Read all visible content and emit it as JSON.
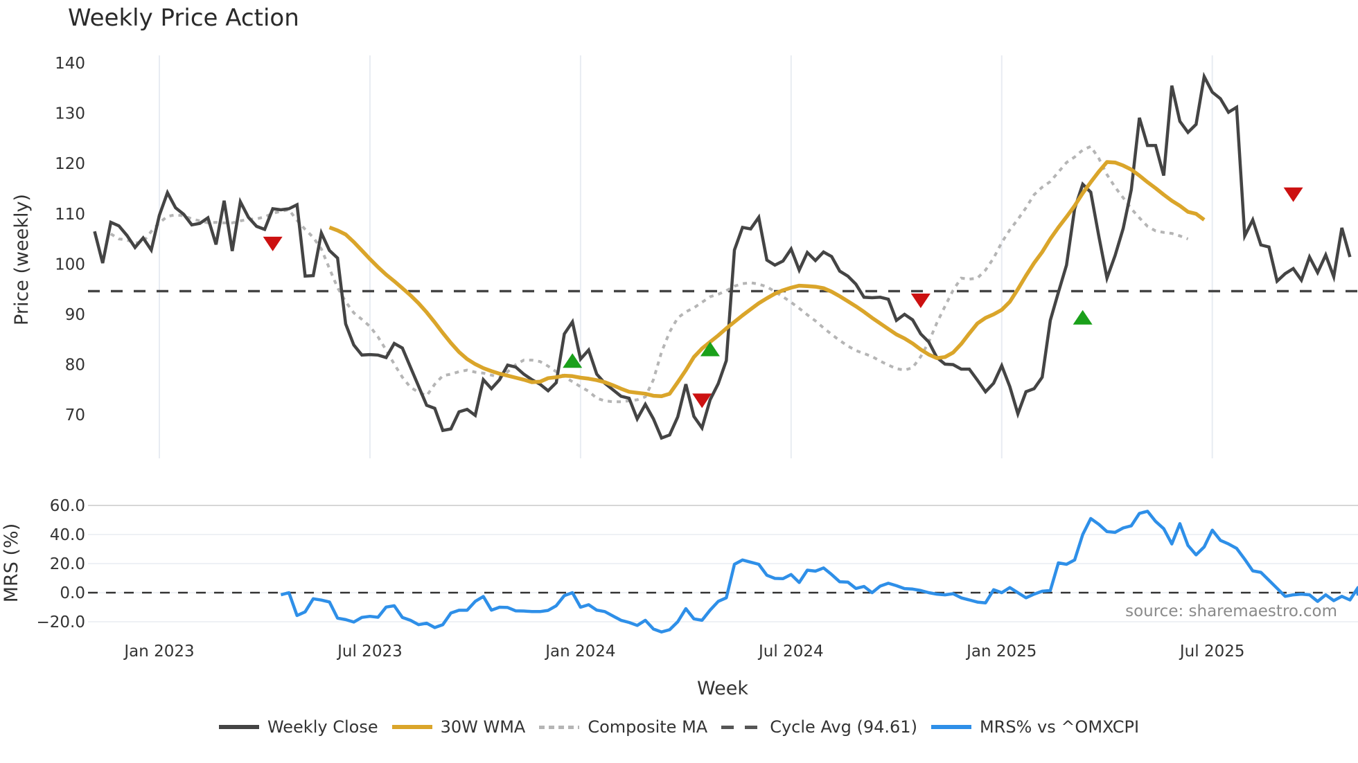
{
  "title": "Weekly Price Action",
  "source_note": "source: sharemaestro.com",
  "axes": {
    "price_ylabel": "Price (weekly)",
    "mrs_ylabel": "MRS (%)",
    "xlabel": "Week",
    "price_ticks": [
      "140",
      "130",
      "120",
      "110",
      "100",
      "90",
      "80",
      "70"
    ],
    "mrs_ticks": [
      "60.0",
      "40.0",
      "20.0",
      "0.0",
      "−20.0"
    ],
    "x_ticks": [
      "Jan 2023",
      "Jul 2023",
      "Jan 2024",
      "Jul 2024",
      "Jan 2025",
      "Jul 2025"
    ]
  },
  "legend": [
    {
      "label": "Weekly Close",
      "color": "#444444",
      "style": "solid"
    },
    {
      "label": "30W WMA",
      "color": "#DAA52A",
      "style": "solid"
    },
    {
      "label": "Composite MA",
      "color": "#B5B5B5",
      "style": "dotted"
    },
    {
      "label": "Cycle Avg (94.61)",
      "color": "#555555",
      "style": "dashed"
    },
    {
      "label": "MRS% vs ^OMXCPI",
      "color": "#2E8FE8",
      "style": "solid"
    }
  ],
  "colors": {
    "close": "#444444",
    "wma": "#DAA52A",
    "composite": "#B5B5B5",
    "cycle": "#444444",
    "mrs": "#2E8FE8",
    "buy": "#1AA01A",
    "sell": "#CC1111",
    "grid": "#E8ECF2"
  },
  "chart_data": [
    {
      "type": "line",
      "title": "Weekly Price Action",
      "xlabel": "Week",
      "ylabel": "Price (weekly)",
      "ylim": [
        61,
        141
      ],
      "x_unit": "weeks since Jan 2023",
      "x_ticks": {
        "Jan 2023": 0,
        "Jul 2023": 26,
        "Jan 2024": 52,
        "Jul 2024": 78,
        "Jan 2025": 104,
        "Jul 2025": 130
      },
      "grid": true,
      "legend_position": "bottom",
      "series": [
        {
          "name": "Weekly Close",
          "x_start": -9,
          "values": [
            108.3,
            106.5,
            100.2,
            108.3,
            107.6,
            105.7,
            103.3,
            105.2,
            102.8,
            109.7,
            114.2,
            111.2,
            109.9,
            107.8,
            108.1,
            109.2,
            103.9,
            112.6,
            102.6,
            112.4,
            109.3,
            107.5,
            106.9,
            111.0,
            110.8,
            111.0,
            111.8,
            97.6,
            97.7,
            106.2,
            102.7,
            101.2,
            88.1,
            83.9,
            81.9,
            82.0,
            81.9,
            81.4,
            84.2,
            83.3,
            79.5,
            75.7,
            71.9,
            71.3,
            66.9,
            67.2,
            70.6,
            71.1,
            69.9,
            77.0,
            75.2,
            77.0,
            79.9,
            79.5,
            78.1,
            77.0,
            76.1,
            74.8,
            76.4,
            86.1,
            88.5,
            81.1,
            82.9,
            78.1,
            76.3,
            75.0,
            73.7,
            73.3,
            69.2,
            72.1,
            69.2,
            65.4,
            66.0,
            69.6,
            76.1,
            69.7,
            67.4,
            73.0,
            76.2,
            80.8,
            102.8,
            107.3,
            107.0,
            109.3,
            100.8,
            99.8,
            100.6,
            103.0,
            98.8,
            102.3,
            100.7,
            102.4,
            101.5,
            98.6,
            97.6,
            96.0,
            93.4,
            93.3,
            93.4,
            93.0,
            88.8,
            90.0,
            88.9,
            86.1,
            84.5,
            81.4,
            80.1,
            80.0,
            79.1,
            79.1,
            76.9,
            74.6,
            76.3,
            79.8,
            75.6,
            70.2,
            74.6,
            75.2,
            77.5,
            88.8,
            94.4,
            99.8,
            111.0,
            115.9,
            114.3,
            105.5,
            97.2,
            101.7,
            107.1,
            114.8,
            129.1,
            123.6,
            123.6,
            117.6,
            135.5,
            128.4,
            126.2,
            127.8,
            137.3,
            134.2,
            132.9,
            130.2,
            131.2,
            105.6,
            108.8,
            103.8,
            103.4,
            96.6,
            98.1,
            99.1,
            96.8,
            101.4,
            98.3,
            101.8,
            97.5,
            107.2,
            101.4
          ]
        },
        {
          "name": "30W WMA",
          "x_start": 21,
          "values": [
            107.3,
            106.7,
            105.9,
            104.4,
            102.7,
            101.0,
            99.4,
            97.9,
            96.6,
            95.2,
            93.8,
            92.2,
            90.4,
            88.4,
            86.3,
            84.3,
            82.5,
            81.1,
            80.1,
            79.3,
            78.7,
            78.2,
            77.8,
            77.4,
            77.0,
            76.5,
            76.6,
            77.3,
            77.5,
            77.8,
            77.7,
            77.4,
            77.2,
            76.9,
            76.5,
            75.9,
            75.2,
            74.6,
            74.4,
            74.2,
            73.8,
            73.7,
            74.2,
            76.5,
            78.9,
            81.5,
            83.2,
            84.5,
            85.8,
            87.2,
            88.5,
            89.8,
            91.0,
            92.2,
            93.2,
            94.1,
            94.8,
            95.3,
            95.7,
            95.6,
            95.5,
            95.2,
            94.5,
            93.6,
            92.6,
            91.6,
            90.5,
            89.3,
            88.2,
            87.1,
            86.0,
            85.2,
            84.2,
            83.0,
            82.0,
            81.3,
            81.5,
            82.4,
            84.1,
            86.2,
            88.2,
            89.3,
            90.0,
            90.9,
            92.5,
            95.0,
            97.7,
            100.2,
            102.4,
            105.0,
            107.3,
            109.4,
            111.6,
            114.1,
            116.3,
            118.4,
            120.3,
            120.2,
            119.6,
            118.8,
            117.6,
            116.3,
            115.1,
            113.8,
            112.6,
            111.6,
            110.4,
            110.0,
            108.8
          ]
        },
        {
          "name": "Composite MA",
          "x_start": -6,
          "values": [
            106.0,
            105.0,
            104.8,
            104.2,
            104.4,
            106.5,
            108.2,
            109.5,
            109.8,
            109.6,
            109.0,
            108.6,
            108.2,
            108.3,
            108.2,
            108.2,
            108.6,
            108.9,
            109.0,
            109.4,
            110.1,
            110.5,
            110.8,
            108.7,
            106.9,
            105.3,
            103.0,
            99.1,
            95.3,
            92.5,
            90.3,
            89.0,
            87.6,
            85.5,
            82.9,
            80.1,
            77.5,
            75.5,
            74.5,
            73.8,
            76.1,
            77.8,
            78.1,
            78.6,
            78.9,
            78.5,
            78.3,
            77.9,
            77.5,
            78.6,
            80.0,
            80.9,
            80.9,
            80.6,
            79.7,
            78.6,
            77.6,
            76.6,
            75.6,
            74.7,
            73.3,
            72.8,
            72.6,
            72.6,
            72.8,
            73.0,
            73.6,
            77.0,
            82.5,
            86.5,
            89.3,
            90.5,
            91.3,
            92.4,
            93.5,
            94.0,
            94.7,
            95.6,
            96.1,
            96.3,
            96.0,
            95.5,
            94.5,
            93.5,
            92.4,
            91.2,
            89.9,
            88.7,
            87.3,
            86.0,
            84.8,
            83.7,
            82.8,
            82.2,
            81.6,
            80.7,
            79.9,
            79.2,
            78.9,
            79.4,
            81.6,
            84.5,
            88.3,
            91.6,
            94.8,
            97.2,
            97.0,
            97.2,
            98.8,
            101.2,
            104.3,
            106.8,
            108.9,
            111.2,
            113.8,
            115.3,
            116.4,
            118.3,
            120.2,
            121.3,
            122.7,
            123.4,
            121.0,
            117.8,
            115.3,
            113.2,
            111.0,
            109.2,
            107.5,
            106.6,
            106.3,
            106.1,
            105.6,
            105.0
          ]
        },
        {
          "name": "Cycle Avg",
          "constant": 94.61
        }
      ],
      "markers": [
        {
          "type": "sell",
          "week": 14,
          "value": 104.2
        },
        {
          "type": "buy",
          "week": 51,
          "value": 80.6
        },
        {
          "type": "sell",
          "week": 67,
          "value": 73.0
        },
        {
          "type": "buy",
          "week": 68,
          "value": 82.9
        },
        {
          "type": "sell",
          "week": 94,
          "value": 92.9
        },
        {
          "type": "buy",
          "week": 114,
          "value": 89.2
        },
        {
          "type": "sell",
          "week": 140,
          "value": 114.0
        }
      ]
    },
    {
      "type": "line",
      "title": "",
      "ylabel": "MRS (%)",
      "ylim": [
        -25,
        62
      ],
      "series": [
        {
          "name": "MRS% vs ^OMXCPI",
          "x_start": 15,
          "values": [
            -1.5,
            0.0,
            -15.7,
            -13.2,
            -4.2,
            -5.1,
            -6.4,
            -17.5,
            -18.5,
            -20.2,
            -17.0,
            -16.3,
            -16.9,
            -9.9,
            -9.0,
            -17.0,
            -19.0,
            -22.0,
            -21.0,
            -24.0,
            -22.0,
            -14.0,
            -12.1,
            -12.1,
            -6.0,
            -2.6,
            -12.0,
            -10.0,
            -10.2,
            -12.5,
            -12.6,
            -13.0,
            -13.0,
            -12.2,
            -9.0,
            -2.0,
            0.0,
            -10.0,
            -8.3,
            -12.0,
            -13.0,
            -16.0,
            -19.0,
            -20.5,
            -22.5,
            -19.0,
            -25.0,
            -27.0,
            -25.5,
            -20.0,
            -11.0,
            -18.0,
            -19.0,
            -12.0,
            -6.0,
            -3.5,
            19.5,
            22.5,
            21.0,
            19.5,
            12.0,
            9.8,
            9.6,
            12.5,
            7.0,
            15.5,
            14.8,
            17.0,
            12.5,
            7.5,
            7.3,
            2.9,
            4.3,
            0.0,
            4.5,
            6.5,
            4.8,
            2.8,
            2.5,
            1.5,
            0.0,
            -1.0,
            -1.5,
            -0.7,
            -3.5,
            -5.0,
            -6.5,
            -7.0,
            2.0,
            0.0,
            3.5,
            0.0,
            -3.5,
            -1.0,
            1.0,
            1.5,
            20.5,
            19.5,
            22.5,
            40.0,
            51.0,
            47.0,
            42.0,
            41.5,
            44.5,
            46.0,
            54.5,
            56.0,
            49.0,
            44.0,
            33.5,
            47.5,
            32.5,
            26.0,
            31.5,
            43.0,
            36.0,
            33.5,
            30.5,
            23.0,
            15.0,
            14.0,
            8.5,
            3.0,
            -2.5,
            -1.5,
            -1.0,
            -1.5,
            -6.0,
            -1.5,
            -5.5,
            -2.5,
            -5.0,
            3.5,
            -2.0
          ]
        },
        {
          "name": "Zero line",
          "constant": 0
        }
      ]
    }
  ]
}
